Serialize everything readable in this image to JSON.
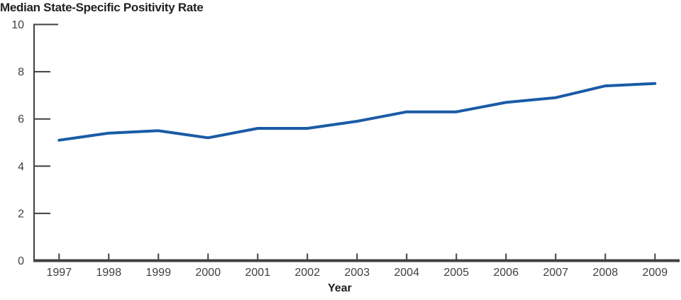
{
  "figure": {
    "title": "Median State-Specific Positivity Rate",
    "x_axis_title": "Year"
  },
  "chart_data": {
    "type": "line",
    "title": "Median State-Specific Positivity Rate",
    "xlabel": "Year",
    "ylabel": "",
    "categories": [
      "1997",
      "1998",
      "1999",
      "2000",
      "2001",
      "2002",
      "2003",
      "2004",
      "2005",
      "2006",
      "2007",
      "2008",
      "2009"
    ],
    "series": [
      {
        "name": "Median state-specific positivity rate",
        "values": [
          5.1,
          5.4,
          5.5,
          5.2,
          5.6,
          5.6,
          5.9,
          6.3,
          6.3,
          6.7,
          6.9,
          7.4,
          7.5
        ]
      }
    ],
    "ylim": [
      0,
      10
    ],
    "yticks": [
      0,
      2,
      4,
      6,
      8,
      10
    ],
    "grid": "off",
    "legend": "none",
    "colors": {
      "line": "#1A5BA6",
      "axis": "#414042",
      "tick_label": "#414042",
      "title": "#231F20",
      "background": "#FFFFFF"
    }
  }
}
